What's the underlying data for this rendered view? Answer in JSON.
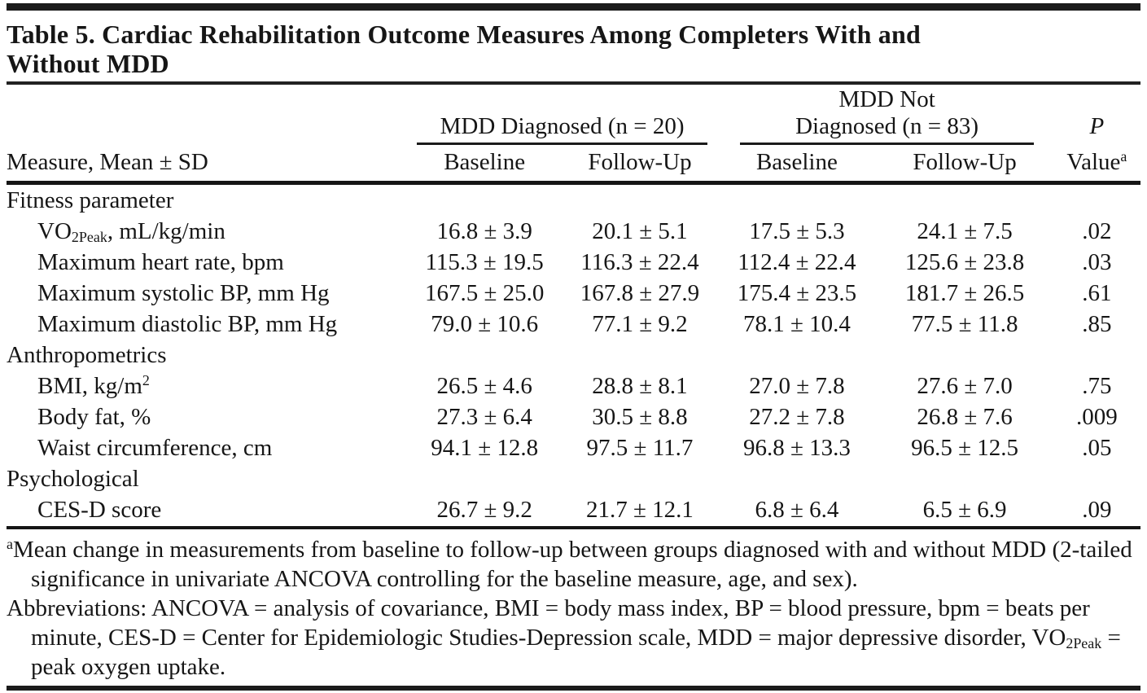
{
  "document": {
    "title": "Table 5. Cardiac Rehabilitation Outcome Measures Among Completers With and Without MDD",
    "title_lines": [
      "Table 5. Cardiac Rehabilitation Outcome Measures Among Completers With and",
      "Without MDD"
    ]
  },
  "table": {
    "header": {
      "stub": "Measure, Mean ± SD",
      "group1": "MDD Diagnosed (n = 20)",
      "group2_lines": [
        "MDD Not",
        "Diagnosed (n = 83)"
      ],
      "sub": [
        "Baseline",
        "Follow-Up",
        "Baseline",
        "Follow-Up"
      ],
      "p_line1": "P",
      "p_line2": "Value^{a}"
    },
    "sections": [
      {
        "label": "Fitness parameter",
        "rows": [
          {
            "measure": "VO_{2Peak}, mL/kg/min",
            "values": [
              "16.8 ± 3.9",
              "20.1 ± 5.1",
              "17.5 ± 5.3",
              "24.1 ± 7.5",
              ".02"
            ]
          },
          {
            "measure": "Maximum heart rate, bpm",
            "values": [
              "115.3 ± 19.5",
              "116.3 ± 22.4",
              "112.4 ± 22.4",
              "125.6 ± 23.8",
              ".03"
            ]
          },
          {
            "measure": "Maximum systolic BP, mm Hg",
            "values": [
              "167.5 ± 25.0",
              "167.8 ± 27.9",
              "175.4 ± 23.5",
              "181.7 ± 26.5",
              ".61"
            ]
          },
          {
            "measure": "Maximum diastolic BP, mm Hg",
            "values": [
              "79.0 ± 10.6",
              "77.1 ± 9.2",
              "78.1 ± 10.4",
              "77.5 ± 11.8",
              ".85"
            ]
          }
        ]
      },
      {
        "label": "Anthropometrics",
        "rows": [
          {
            "measure": "BMI, kg/m^{2}",
            "values": [
              "26.5 ± 4.6",
              "28.8 ± 8.1",
              "27.0 ± 7.8",
              "27.6 ± 7.0",
              ".75"
            ]
          },
          {
            "measure": "Body fat, %",
            "values": [
              "27.3 ± 6.4",
              "30.5 ± 8.8",
              "27.2 ± 7.8",
              "26.8 ± 7.6",
              ".009"
            ]
          },
          {
            "measure": "Waist circumference, cm",
            "values": [
              "94.1 ± 12.8",
              "97.5 ± 11.7",
              "96.8 ± 13.3",
              "96.5 ± 12.5",
              ".05"
            ]
          }
        ]
      },
      {
        "label": "Psychological",
        "rows": [
          {
            "measure": "CES-D score",
            "values": [
              "26.7 ± 9.2",
              "21.7 ± 12.1",
              "6.8 ± 6.4",
              "6.5 ± 6.9",
              ".09"
            ]
          }
        ]
      }
    ]
  },
  "footnotes": [
    "^{a}Mean change in measurements from baseline to follow-up between groups diagnosed with and without MDD (2-tailed significance in univariate ANCOVA controlling for the baseline measure, age, and sex).",
    "Abbreviations: ANCOVA = analysis of covariance, BMI = body mass index, BP = blood pressure, bpm = beats per minute, CES-D = Center for Epidemiologic Studies-Depression scale, MDD = major depressive disorder, VO_{2Peak} = peak oxygen uptake."
  ],
  "colors": {
    "text": "#161616",
    "rule": "#1b1b1b",
    "background": "#ffffff"
  }
}
